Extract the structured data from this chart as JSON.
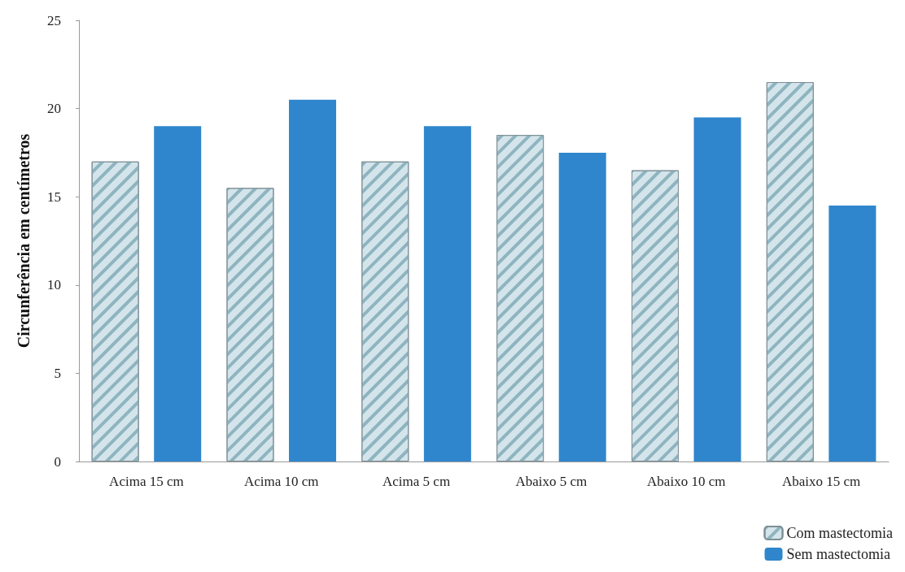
{
  "chart_data": {
    "type": "bar",
    "ylabel": "Circunferência em centímetros",
    "categories": [
      "Acima 15 cm",
      "Acima 10 cm",
      "Acima 5 cm",
      "Abaixo 5 cm",
      "Abaixo 10 cm",
      "Abaixo 15 cm"
    ],
    "series": [
      {
        "name": "Com mastectomia",
        "color": "#d3e5eb",
        "values": [
          17,
          15.5,
          17,
          18.5,
          16.5,
          21.5
        ]
      },
      {
        "name": "Sem mastectomia",
        "color": "#2f86cc",
        "values": [
          19,
          20.5,
          19,
          17.5,
          19.5,
          14.5
        ]
      }
    ],
    "ylim": [
      0,
      25
    ],
    "yticks": [
      0,
      5,
      10,
      15,
      20,
      25
    ],
    "grid": false,
    "legend": "bottom right"
  }
}
